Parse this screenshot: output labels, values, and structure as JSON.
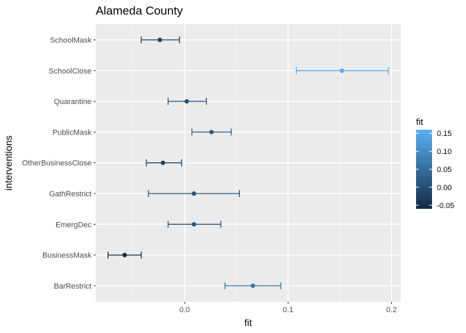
{
  "chart_data": {
    "type": "errorbar",
    "title": "Alameda County",
    "xlabel": "fit",
    "ylabel": "interventions",
    "xlim": [
      -0.086,
      0.209
    ],
    "xticks": [
      0.0,
      0.1,
      0.2
    ],
    "xtick_labels": [
      "0.0",
      "0.1",
      "0.2"
    ],
    "grid": true,
    "categories": [
      "SchoolMask",
      "SchoolClose",
      "Quarantine",
      "PublicMask",
      "OtherBusinessClose",
      "GathRestrict",
      "EmergDec",
      "BusinessMask",
      "BarRestrict"
    ],
    "series": [
      {
        "fit": [
          -0.024,
          0.152,
          0.002,
          0.026,
          -0.021,
          0.009,
          0.009,
          -0.058,
          0.066
        ],
        "lower": [
          -0.042,
          0.108,
          -0.016,
          0.007,
          -0.037,
          -0.035,
          -0.016,
          -0.074,
          0.039
        ],
        "upper": [
          -0.005,
          0.197,
          0.021,
          0.045,
          -0.003,
          0.053,
          0.035,
          -0.042,
          0.093
        ]
      }
    ],
    "legend": {
      "title": "fit",
      "position": "right",
      "range": [
        -0.06,
        0.16
      ],
      "ticks": [
        0.15,
        0.1,
        0.05,
        0.0,
        -0.05
      ],
      "tick_labels": [
        "0.15",
        "0.10",
        "0.05",
        "0.00",
        "-0.05"
      ],
      "color_low": "#132B43",
      "color_high": "#56B1F7"
    },
    "colors": {
      "panel_background": "#EBEBEB",
      "grid_major": "#FFFFFF"
    }
  }
}
